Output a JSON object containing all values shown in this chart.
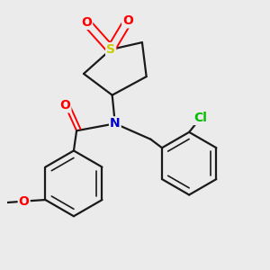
{
  "bg_color": "#ebebeb",
  "bond_color": "#1a1a1a",
  "colors": {
    "S": "#cccc00",
    "O": "#ff0000",
    "N": "#0000cc",
    "Cl": "#00bb00",
    "C": "#1a1a1a"
  }
}
